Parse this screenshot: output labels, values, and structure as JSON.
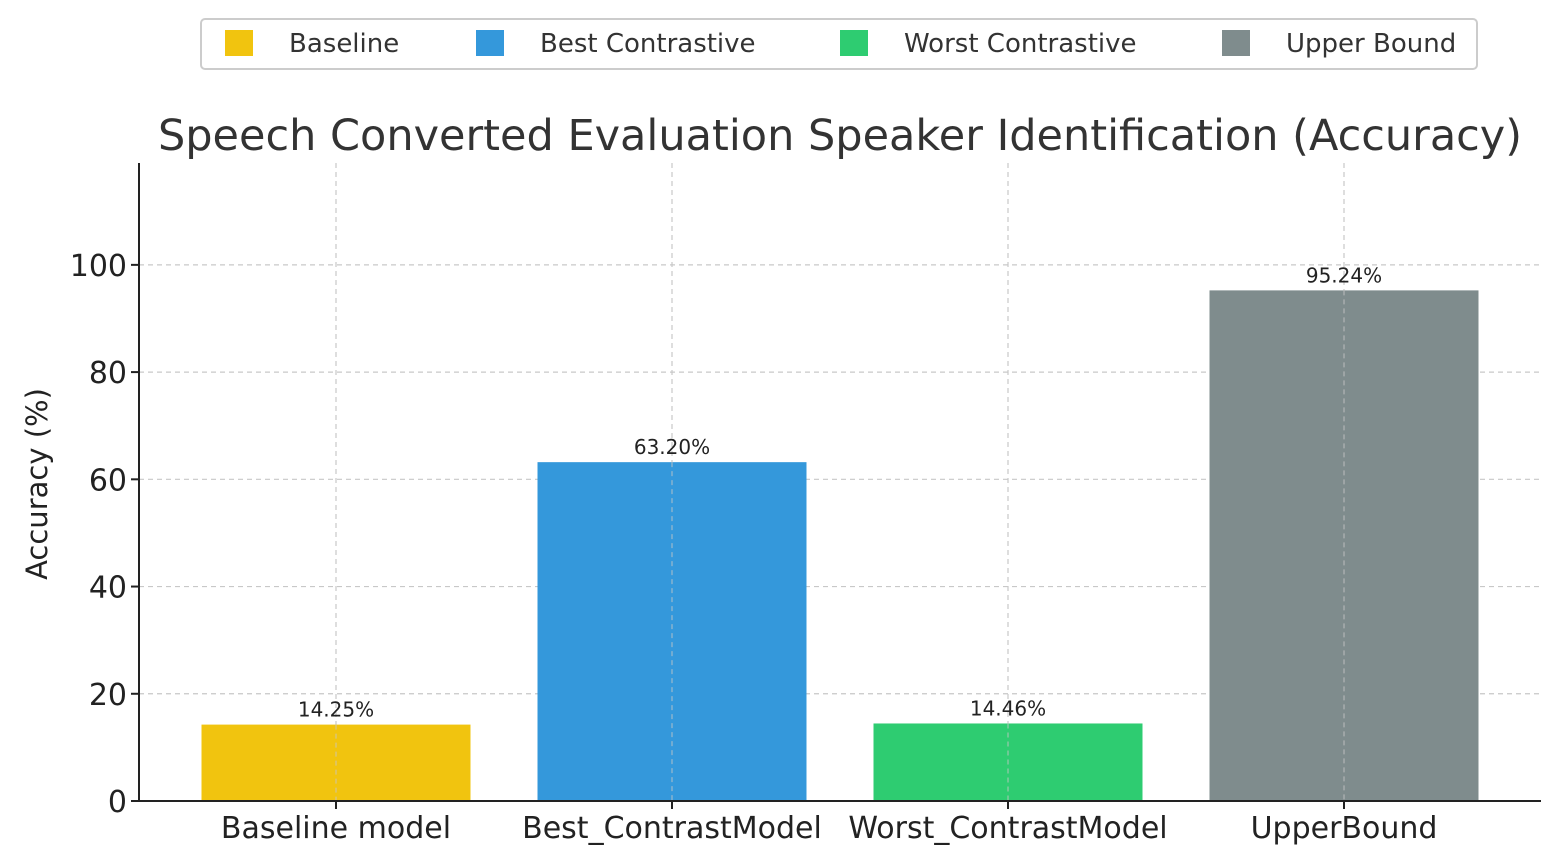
{
  "chart_data": {
    "type": "bar",
    "title": "Speech Converted Evaluation Speaker Identification (Accuracy)",
    "xlabel": "",
    "ylabel": "Accuracy (%)",
    "categories": [
      "Baseline model",
      "Best_ContrastModel",
      "Worst_ContrastModel",
      "UpperBound"
    ],
    "values": [
      14.25,
      63.2,
      14.46,
      95.24
    ],
    "value_labels": [
      "14.25%",
      "63.20%",
      "14.46%",
      "95.24%"
    ],
    "colors": [
      "#f1c40f",
      "#3498db",
      "#2ecc71",
      "#7f8c8d"
    ],
    "ylim": [
      0,
      119
    ],
    "yticks": [
      0,
      20,
      40,
      60,
      80,
      100
    ],
    "grid": true,
    "legend": {
      "placement": "top-center",
      "entries": [
        {
          "label": "Baseline",
          "color": "#f1c40f"
        },
        {
          "label": "Best Contrastive",
          "color": "#3498db"
        },
        {
          "label": "Worst Contrastive",
          "color": "#2ecc71"
        },
        {
          "label": "Upper Bound",
          "color": "#7f8c8d"
        }
      ]
    }
  }
}
